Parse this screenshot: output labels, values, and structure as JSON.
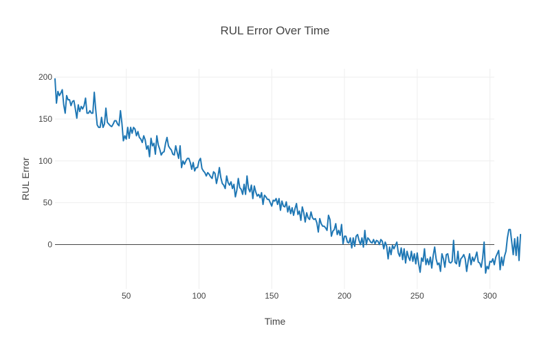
{
  "chart_data": {
    "type": "line",
    "title": "RUL Error Over Time",
    "xlabel": "Time",
    "ylabel": "RUL Error",
    "xlim": [
      1,
      303
    ],
    "ylim": [
      -53,
      210
    ],
    "x_ticks": [
      50,
      100,
      150,
      200,
      250,
      300
    ],
    "y_ticks": [
      0,
      50,
      100,
      150,
      200
    ],
    "grid": true,
    "zeroline": true,
    "legend": "none",
    "series": [
      {
        "color": "#1f77b4",
        "x_start": 1,
        "x_step": 1,
        "values": [
          198,
          169,
          183,
          178,
          181,
          185,
          167,
          157,
          178,
          173,
          173,
          166,
          171,
          172,
          162,
          151,
          167,
          159,
          165,
          162,
          166,
          175,
          157,
          157,
          160,
          157,
          157,
          182,
          161,
          143,
          140,
          140,
          152,
          140,
          144,
          163,
          146,
          144,
          142,
          141,
          144,
          148,
          148,
          144,
          142,
          160,
          145,
          124,
          130,
          126,
          140,
          127,
          140,
          133,
          140,
          138,
          130,
          135,
          128,
          126,
          122,
          130,
          125,
          114,
          118,
          105,
          127,
          118,
          121,
          108,
          130,
          119,
          114,
          107,
          110,
          111,
          121,
          128,
          118,
          115,
          113,
          108,
          107,
          118,
          110,
          103,
          118,
          92,
          100,
          96,
          100,
          103,
          103,
          98,
          90,
          98,
          88,
          92,
          92,
          100,
          103,
          91,
          88,
          86,
          82,
          86,
          84,
          81,
          79,
          87,
          85,
          73,
          81,
          92,
          80,
          73,
          71,
          67,
          82,
          74,
          71,
          75,
          67,
          72,
          57,
          65,
          79,
          68,
          66,
          60,
          72,
          60,
          82,
          67,
          63,
          71,
          55,
          70,
          63,
          58,
          60,
          56,
          62,
          48,
          59,
          57,
          54,
          54,
          50,
          46,
          53,
          52,
          55,
          48,
          55,
          41,
          52,
          46,
          45,
          51,
          39,
          46,
          37,
          44,
          35,
          43,
          49,
          36,
          40,
          29,
          45,
          38,
          27,
          38,
          32,
          30,
          39,
          32,
          30,
          31,
          26,
          15,
          31,
          25,
          22,
          22,
          20,
          17,
          35,
          30,
          10,
          16,
          18,
          25,
          12,
          17,
          11,
          24,
          1,
          10,
          10,
          3,
          2,
          8,
          -4,
          8,
          -2,
          10,
          12,
          5,
          0,
          8,
          -3,
          17,
          0,
          8,
          6,
          3,
          2,
          6,
          1,
          5,
          4,
          0,
          6,
          4,
          -5,
          3,
          -2,
          -17,
          -3,
          -12,
          -1,
          -5,
          -1,
          3,
          -10,
          -14,
          -4,
          -18,
          -5,
          -22,
          -8,
          -15,
          -19,
          -8,
          -20,
          -11,
          -23,
          -10,
          -23,
          -33,
          -16,
          -20,
          -5,
          -24,
          -17,
          -24,
          -15,
          -28,
          -13,
          -3,
          -17,
          -24,
          -22,
          -32,
          -11,
          -17,
          -27,
          -12,
          -11,
          -21,
          -22,
          -20,
          5,
          -21,
          -23,
          -8,
          -26,
          -17,
          -15,
          -12,
          -17,
          -32,
          -20,
          -11,
          -24,
          -15,
          -20,
          -15,
          -9,
          -21,
          -22,
          -27,
          -16,
          3,
          -34,
          -26,
          -29,
          -20,
          -21,
          -17,
          -24,
          -15,
          -11,
          -7,
          -30,
          -15,
          -25,
          -14,
          -8,
          8,
          18,
          18,
          3,
          -12,
          7,
          -13,
          9,
          -19,
          12
        ]
      }
    ]
  }
}
